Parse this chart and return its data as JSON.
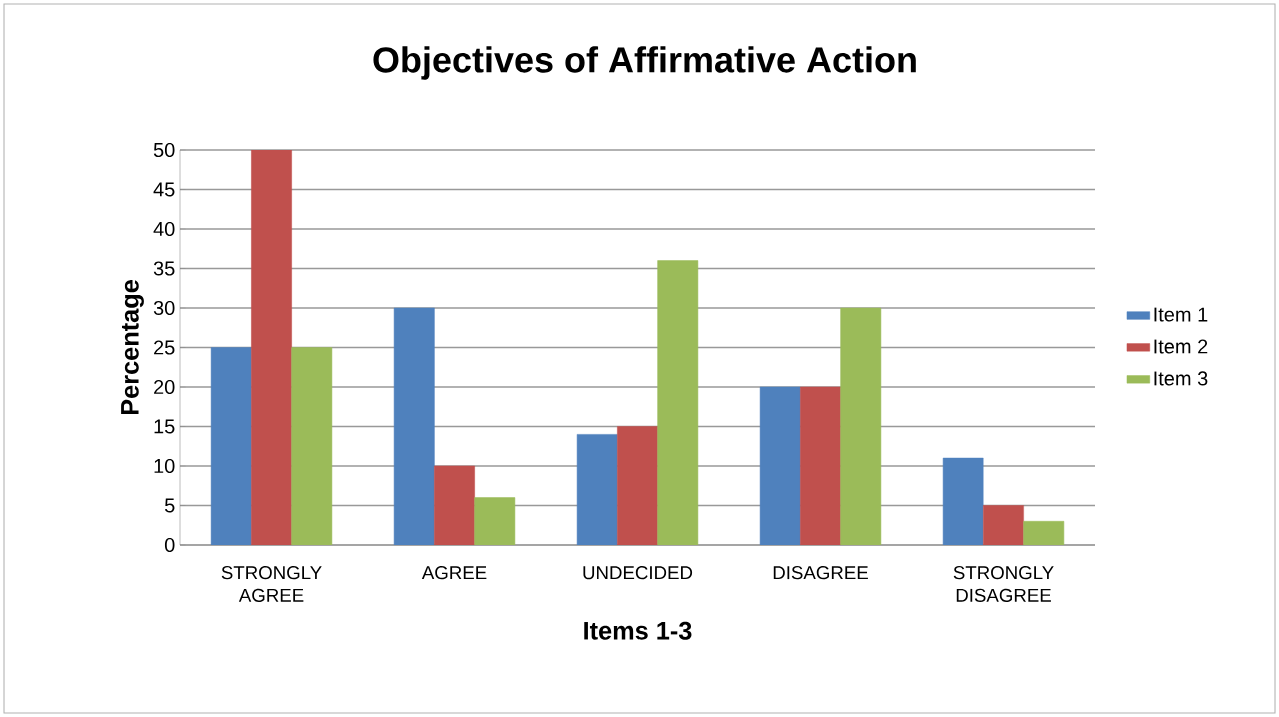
{
  "chart_data": {
    "type": "bar",
    "title": "Objectives of Affirmative Action",
    "xlabel": "Items 1-3",
    "ylabel": "Percentage",
    "categories": [
      "STRONGLY AGREE",
      "AGREE",
      "UNDECIDED",
      "DISAGREE",
      "STRONGLY DISAGREE"
    ],
    "series": [
      {
        "name": "Item 1",
        "color": "#4f81bd",
        "values": [
          25,
          30,
          14,
          20,
          11
        ]
      },
      {
        "name": "Item 2",
        "color": "#c0504d",
        "values": [
          50,
          10,
          15,
          20,
          5
        ]
      },
      {
        "name": "Item 3",
        "color": "#9bbb59",
        "values": [
          25,
          6,
          36,
          30,
          3
        ]
      }
    ],
    "ylim": [
      0,
      50
    ],
    "yticks": [
      0,
      5,
      10,
      15,
      20,
      25,
      30,
      35,
      40,
      45,
      50
    ],
    "grid": "y",
    "legend": "right"
  }
}
